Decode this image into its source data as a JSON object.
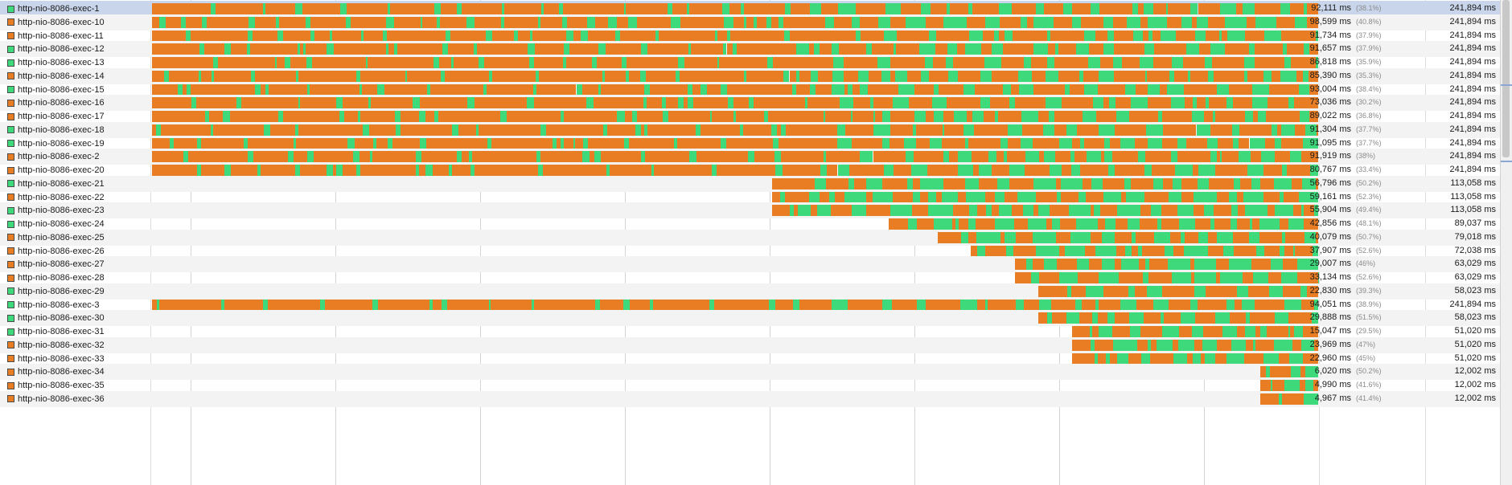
{
  "colors": {
    "running": "#e87d24",
    "waiting": "#3dd97a",
    "selected_row": "#c9d5ea",
    "alt_row": "#f3f3f3"
  },
  "legend_icons": [
    "running-state-icon",
    "waiting-state-icon"
  ],
  "threads": [
    {
      "name": "http-nio-8086-exec-1",
      "state": "waiting",
      "running_time": "92,111 ms",
      "running_pct": "(38.1%)",
      "total_time": "241,894 ms",
      "start": 0.0,
      "selected": true
    },
    {
      "name": "http-nio-8086-exec-10",
      "state": "running",
      "running_time": "98,599 ms",
      "running_pct": "(40.8%)",
      "total_time": "241,894 ms",
      "start": 0.0
    },
    {
      "name": "http-nio-8086-exec-11",
      "state": "running",
      "running_time": "91,734 ms",
      "running_pct": "(37.9%)",
      "total_time": "241,894 ms",
      "start": 0.0
    },
    {
      "name": "http-nio-8086-exec-12",
      "state": "waiting",
      "running_time": "91,657 ms",
      "running_pct": "(37.9%)",
      "total_time": "241,894 ms",
      "start": 0.0
    },
    {
      "name": "http-nio-8086-exec-13",
      "state": "waiting",
      "running_time": "86,818 ms",
      "running_pct": "(35.9%)",
      "total_time": "241,894 ms",
      "start": 0.0
    },
    {
      "name": "http-nio-8086-exec-14",
      "state": "running",
      "running_time": "85,390 ms",
      "running_pct": "(35.3%)",
      "total_time": "241,894 ms",
      "start": 0.0
    },
    {
      "name": "http-nio-8086-exec-15",
      "state": "waiting",
      "running_time": "93,004 ms",
      "running_pct": "(38.4%)",
      "total_time": "241,894 ms",
      "start": 0.0
    },
    {
      "name": "http-nio-8086-exec-16",
      "state": "running",
      "running_time": "73,036 ms",
      "running_pct": "(30.2%)",
      "total_time": "241,894 ms",
      "start": 0.0
    },
    {
      "name": "http-nio-8086-exec-17",
      "state": "running",
      "running_time": "89,022 ms",
      "running_pct": "(36.8%)",
      "total_time": "241,894 ms",
      "start": 0.0
    },
    {
      "name": "http-nio-8086-exec-18",
      "state": "waiting",
      "running_time": "91,304 ms",
      "running_pct": "(37.7%)",
      "total_time": "241,894 ms",
      "start": 0.0
    },
    {
      "name": "http-nio-8086-exec-19",
      "state": "waiting",
      "running_time": "91,095 ms",
      "running_pct": "(37.7%)",
      "total_time": "241,894 ms",
      "start": 0.0
    },
    {
      "name": "http-nio-8086-exec-2",
      "state": "running",
      "running_time": "91,919 ms",
      "running_pct": "(38%)",
      "total_time": "241,894 ms",
      "start": 0.0
    },
    {
      "name": "http-nio-8086-exec-20",
      "state": "running",
      "running_time": "80,767 ms",
      "running_pct": "(33.4%)",
      "total_time": "241,894 ms",
      "start": 0.0
    },
    {
      "name": "http-nio-8086-exec-21",
      "state": "waiting",
      "running_time": "56,796 ms",
      "running_pct": "(50.2%)",
      "total_time": "113,058 ms",
      "start": 0.532
    },
    {
      "name": "http-nio-8086-exec-22",
      "state": "running",
      "running_time": "59,161 ms",
      "running_pct": "(52.3%)",
      "total_time": "113,058 ms",
      "start": 0.532
    },
    {
      "name": "http-nio-8086-exec-23",
      "state": "waiting",
      "running_time": "55,904 ms",
      "running_pct": "(49.4%)",
      "total_time": "113,058 ms",
      "start": 0.532
    },
    {
      "name": "http-nio-8086-exec-24",
      "state": "waiting",
      "running_time": "42,856 ms",
      "running_pct": "(48.1%)",
      "total_time": "89,037 ms",
      "start": 0.632
    },
    {
      "name": "http-nio-8086-exec-25",
      "state": "running",
      "running_time": "40,079 ms",
      "running_pct": "(50.7%)",
      "total_time": "79,018 ms",
      "start": 0.674
    },
    {
      "name": "http-nio-8086-exec-26",
      "state": "running",
      "running_time": "37,907 ms",
      "running_pct": "(52.6%)",
      "total_time": "72,038 ms",
      "start": 0.702
    },
    {
      "name": "http-nio-8086-exec-27",
      "state": "running",
      "running_time": "29,007 ms",
      "running_pct": "(46%)",
      "total_time": "63,029 ms",
      "start": 0.74
    },
    {
      "name": "http-nio-8086-exec-28",
      "state": "running",
      "running_time": "33,134 ms",
      "running_pct": "(52.6%)",
      "total_time": "63,029 ms",
      "start": 0.74
    },
    {
      "name": "http-nio-8086-exec-29",
      "state": "waiting",
      "running_time": "22,830 ms",
      "running_pct": "(39.3%)",
      "total_time": "58,023 ms",
      "start": 0.76
    },
    {
      "name": "http-nio-8086-exec-3",
      "state": "waiting",
      "running_time": "94,051 ms",
      "running_pct": "(38.9%)",
      "total_time": "241,894 ms",
      "start": 0.0
    },
    {
      "name": "http-nio-8086-exec-30",
      "state": "waiting",
      "running_time": "29,888 ms",
      "running_pct": "(51.5%)",
      "total_time": "58,023 ms",
      "start": 0.76
    },
    {
      "name": "http-nio-8086-exec-31",
      "state": "waiting",
      "running_time": "15,047 ms",
      "running_pct": "(29.5%)",
      "total_time": "51,020 ms",
      "start": 0.789
    },
    {
      "name": "http-nio-8086-exec-32",
      "state": "running",
      "running_time": "23,969 ms",
      "running_pct": "(47%)",
      "total_time": "51,020 ms",
      "start": 0.789
    },
    {
      "name": "http-nio-8086-exec-33",
      "state": "running",
      "running_time": "22,960 ms",
      "running_pct": "(45%)",
      "total_time": "51,020 ms",
      "start": 0.789
    },
    {
      "name": "http-nio-8086-exec-34",
      "state": "running",
      "running_time": "6,020 ms",
      "running_pct": "(50.2%)",
      "total_time": "12,002 ms",
      "start": 0.95
    },
    {
      "name": "http-nio-8086-exec-35",
      "state": "running",
      "running_time": "4,990 ms",
      "running_pct": "(41.6%)",
      "total_time": "12,002 ms",
      "start": 0.95
    },
    {
      "name": "http-nio-8086-exec-36",
      "state": "running",
      "running_time": "4,967 ms",
      "running_pct": "(41.4%)",
      "total_time": "12,002 ms",
      "start": 0.95
    }
  ]
}
